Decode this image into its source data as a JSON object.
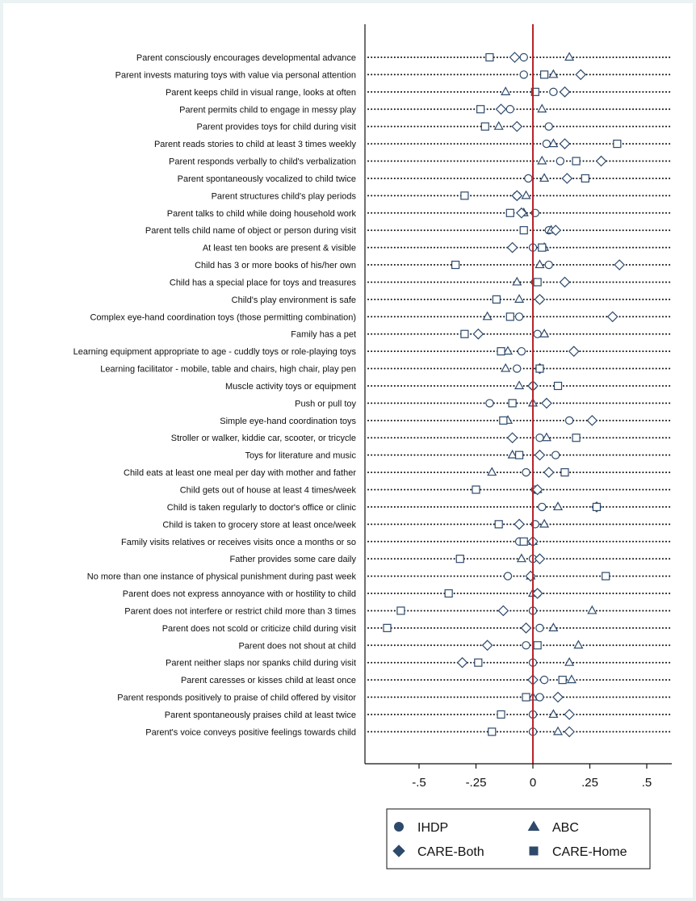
{
  "colors": {
    "marker": "#2e4a6b",
    "zero_line": "#b8242b",
    "dots": "#111111",
    "frame": "#111111"
  },
  "chart_data": {
    "type": "scatter",
    "orientation": "horizontal",
    "x_ticks": [
      -0.5,
      -0.25,
      0,
      0.25,
      0.5
    ],
    "x_tick_labels": [
      "-.5",
      "-.25",
      "0",
      ".25",
      ".5"
    ],
    "xlim": [
      -0.73,
      0.6
    ],
    "reference_line_x": 0,
    "legend_position": "bottom",
    "grid": "dotted row lines",
    "categories": [
      "Parent consciously encourages developmental advance",
      "Parent invests maturing toys with value via personal attention",
      "Parent keeps child in visual range, looks at often",
      "Parent permits child to engage in messy play",
      "Parent provides toys for child during visit",
      "Parent reads stories to child at least 3 times weekly",
      "Parent responds verbally to child's verbalization",
      "Parent spontaneously vocalized to child twice",
      "Parent structures child's play periods",
      "Parent talks to child while doing household work",
      "Parent tells child name of object or person during visit",
      "At least ten books are present & visible",
      "Child has 3 or more books of his/her own",
      "Child has a special place for toys and treasures",
      "Child's play environment is safe",
      "Complex eye-hand coordination toys (those permitting combination)",
      "Family has a pet",
      "Learning equipment appropriate to age - cuddly toys or role-playing toys",
      "Learning facilitator - mobile, table and chairs, high chair, play pen",
      "Muscle activity toys or equipment",
      "Push or pull toy",
      "Simple eye-hand coordination toys",
      "Stroller or walker, kiddie car, scooter, or tricycle",
      "Toys for literature and music",
      "Child eats at least one meal per day with mother and father",
      "Child gets out of house at least 4 times/week",
      "Child is taken regularly to doctor's office or clinic",
      "Child is taken to grocery store at least once/week",
      "Family visits relatives or receives visits once a months or so",
      "Father provides some care daily",
      "No more than one instance of physical punishment during past week",
      "Parent does not express annoyance with or hostility to child",
      "Parent does not interfere or restrict child more than 3 times",
      "Parent does not scold or criticize child during visit",
      "Parent does not shout at child",
      "Parent neither slaps nor spanks child during visit",
      "Parent caresses or kisses child at least once",
      "Parent responds positively to praise of child offered by visitor",
      "Parent spontaneously praises child at least twice",
      "Parent's voice conveys positive feelings towards child"
    ],
    "series": [
      {
        "name": "IHDP",
        "marker": "circle",
        "values": [
          -0.04,
          -0.04,
          0.09,
          -0.1,
          0.07,
          0.06,
          0.12,
          -0.02,
          -0.07,
          0.01,
          0.07,
          0.0,
          0.07,
          0.01,
          0.03,
          -0.06,
          0.02,
          -0.05,
          -0.07,
          0.0,
          -0.19,
          0.16,
          0.03,
          0.1,
          -0.03,
          0.01,
          0.04,
          0.01,
          -0.06,
          0.0,
          -0.11,
          0.02,
          0.0,
          0.03,
          -0.03,
          0.0,
          0.05,
          0.03,
          0.0,
          0.0
        ]
      },
      {
        "name": "ABC",
        "marker": "triangle",
        "values": [
          0.16,
          0.09,
          -0.12,
          0.04,
          -0.15,
          0.09,
          0.04,
          0.05,
          -0.03,
          -0.04,
          0.08,
          0.05,
          0.03,
          -0.07,
          -0.06,
          -0.2,
          0.05,
          -0.11,
          -0.12,
          -0.06,
          0.0,
          -0.11,
          0.06,
          -0.09,
          -0.18,
          0.02,
          0.11,
          0.05,
          0.0,
          -0.05,
          -0.01,
          0.0,
          0.26,
          0.09,
          0.2,
          0.16,
          0.17,
          0.0,
          0.09,
          0.11
        ]
      },
      {
        "name": "CARE-Both",
        "marker": "diamond",
        "values": [
          -0.08,
          0.21,
          0.14,
          -0.14,
          -0.07,
          0.14,
          0.3,
          0.15,
          -0.07,
          -0.05,
          0.1,
          -0.09,
          0.38,
          0.14,
          0.03,
          0.35,
          -0.24,
          0.18,
          0.03,
          0.0,
          0.06,
          0.26,
          -0.09,
          0.03,
          0.07,
          0.02,
          0.28,
          -0.06,
          0.0,
          0.03,
          -0.01,
          0.02,
          -0.13,
          -0.03,
          -0.2,
          -0.31,
          0.0,
          0.11,
          0.16,
          0.16
        ]
      },
      {
        "name": "CARE-Home",
        "marker": "square",
        "values": [
          -0.19,
          0.05,
          0.01,
          -0.23,
          -0.21,
          0.37,
          0.19,
          0.23,
          -0.3,
          -0.1,
          -0.04,
          0.04,
          -0.34,
          0.02,
          -0.16,
          -0.1,
          -0.3,
          -0.14,
          0.03,
          0.11,
          -0.09,
          -0.13,
          0.19,
          -0.06,
          0.14,
          -0.25,
          0.28,
          -0.15,
          -0.04,
          -0.32,
          0.32,
          -0.37,
          -0.58,
          -0.64,
          0.02,
          -0.24,
          0.13,
          -0.03,
          -0.14,
          -0.18
        ]
      }
    ]
  }
}
